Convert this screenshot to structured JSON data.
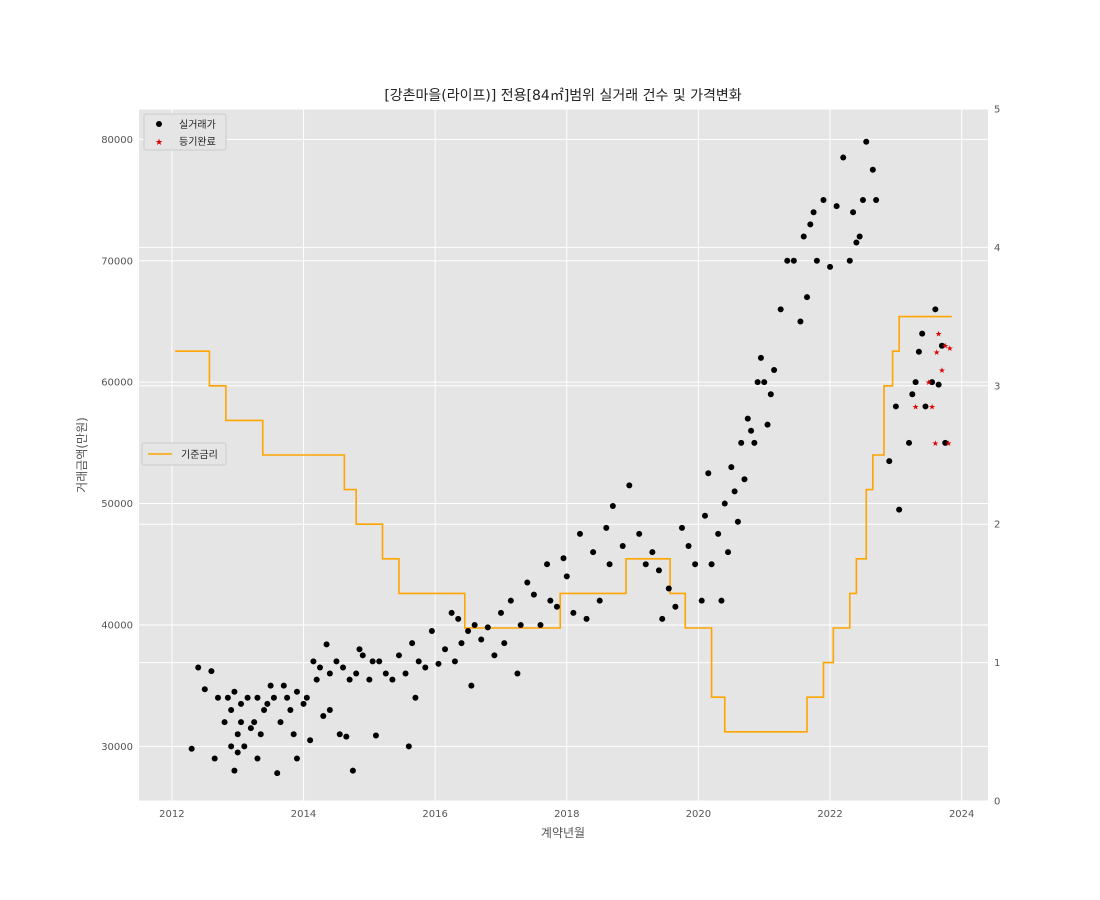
{
  "chart_data": {
    "type": "scatter",
    "title": "[강촌마을(라이프)] 전용[84㎡]범위 실거래 건수 및 가격변화",
    "xlabel": "계약년월",
    "ylabel": "거래금액(만원)",
    "xlim": [
      2011.5,
      2024.4
    ],
    "ylim": [
      25500,
      82500
    ],
    "y2lim": [
      0,
      5
    ],
    "x_ticks": [
      "2012",
      "2014",
      "2016",
      "2018",
      "2020",
      "2022",
      "2024"
    ],
    "y_ticks": [
      "30000",
      "40000",
      "50000",
      "60000",
      "70000",
      "80000"
    ],
    "y2_ticks": [
      "0",
      "1",
      "2",
      "3",
      "4",
      "5"
    ],
    "grid": true,
    "legend_scatter_position": "upper-left",
    "legend_line_position": "center-left",
    "series": [
      {
        "name": "실거래가",
        "kind": "scatter",
        "marker": "circle",
        "color": "#000000",
        "points": [
          [
            2012.3,
            29800
          ],
          [
            2012.4,
            36500
          ],
          [
            2012.5,
            34700
          ],
          [
            2012.6,
            36200
          ],
          [
            2012.65,
            29000
          ],
          [
            2012.7,
            34000
          ],
          [
            2012.8,
            32000
          ],
          [
            2012.85,
            34000
          ],
          [
            2012.9,
            33000
          ],
          [
            2012.9,
            30000
          ],
          [
            2012.95,
            28000
          ],
          [
            2012.95,
            34500
          ],
          [
            2013.0,
            29500
          ],
          [
            2013.0,
            31000
          ],
          [
            2013.05,
            33500
          ],
          [
            2013.05,
            32000
          ],
          [
            2013.1,
            30000
          ],
          [
            2013.15,
            34000
          ],
          [
            2013.2,
            31500
          ],
          [
            2013.25,
            32000
          ],
          [
            2013.3,
            34000
          ],
          [
            2013.3,
            29000
          ],
          [
            2013.35,
            31000
          ],
          [
            2013.4,
            33000
          ],
          [
            2013.45,
            33500
          ],
          [
            2013.5,
            35000
          ],
          [
            2013.55,
            34000
          ],
          [
            2013.6,
            27800
          ],
          [
            2013.65,
            32000
          ],
          [
            2013.7,
            35000
          ],
          [
            2013.75,
            34000
          ],
          [
            2013.8,
            33000
          ],
          [
            2013.85,
            31000
          ],
          [
            2013.9,
            34500
          ],
          [
            2013.9,
            29000
          ],
          [
            2014.0,
            33500
          ],
          [
            2014.05,
            34000
          ],
          [
            2014.1,
            30500
          ],
          [
            2014.15,
            37000
          ],
          [
            2014.2,
            35500
          ],
          [
            2014.25,
            36500
          ],
          [
            2014.3,
            32500
          ],
          [
            2014.35,
            38400
          ],
          [
            2014.4,
            33000
          ],
          [
            2014.4,
            36000
          ],
          [
            2014.5,
            37000
          ],
          [
            2014.55,
            31000
          ],
          [
            2014.6,
            36500
          ],
          [
            2014.65,
            30800
          ],
          [
            2014.7,
            35500
          ],
          [
            2014.75,
            28000
          ],
          [
            2014.8,
            36000
          ],
          [
            2014.85,
            38000
          ],
          [
            2014.9,
            37500
          ],
          [
            2015.0,
            35500
          ],
          [
            2015.05,
            37000
          ],
          [
            2015.1,
            30900
          ],
          [
            2015.15,
            37000
          ],
          [
            2015.25,
            36000
          ],
          [
            2015.35,
            35500
          ],
          [
            2015.45,
            37500
          ],
          [
            2015.55,
            36000
          ],
          [
            2015.6,
            30000
          ],
          [
            2015.65,
            38500
          ],
          [
            2015.7,
            34000
          ],
          [
            2015.75,
            37000
          ],
          [
            2015.85,
            36500
          ],
          [
            2015.95,
            39500
          ],
          [
            2016.05,
            36800
          ],
          [
            2016.15,
            38000
          ],
          [
            2016.25,
            41000
          ],
          [
            2016.3,
            37000
          ],
          [
            2016.35,
            40500
          ],
          [
            2016.4,
            38500
          ],
          [
            2016.5,
            39500
          ],
          [
            2016.55,
            35000
          ],
          [
            2016.6,
            40000
          ],
          [
            2016.7,
            38800
          ],
          [
            2016.8,
            39800
          ],
          [
            2016.9,
            37500
          ],
          [
            2017.0,
            41000
          ],
          [
            2017.05,
            38500
          ],
          [
            2017.15,
            42000
          ],
          [
            2017.25,
            36000
          ],
          [
            2017.3,
            40000
          ],
          [
            2017.4,
            43500
          ],
          [
            2017.5,
            42500
          ],
          [
            2017.6,
            40000
          ],
          [
            2017.7,
            45000
          ],
          [
            2017.75,
            42000
          ],
          [
            2017.85,
            41500
          ],
          [
            2017.95,
            45500
          ],
          [
            2018.0,
            44000
          ],
          [
            2018.1,
            41000
          ],
          [
            2018.2,
            47500
          ],
          [
            2018.3,
            40500
          ],
          [
            2018.4,
            46000
          ],
          [
            2018.5,
            42000
          ],
          [
            2018.6,
            48000
          ],
          [
            2018.65,
            45000
          ],
          [
            2018.7,
            49800
          ],
          [
            2018.85,
            46500
          ],
          [
            2018.95,
            51500
          ],
          [
            2019.1,
            47500
          ],
          [
            2019.2,
            45000
          ],
          [
            2019.3,
            46000
          ],
          [
            2019.4,
            44500
          ],
          [
            2019.45,
            40500
          ],
          [
            2019.55,
            43000
          ],
          [
            2019.65,
            41500
          ],
          [
            2019.75,
            48000
          ],
          [
            2019.85,
            46500
          ],
          [
            2019.95,
            45000
          ],
          [
            2020.05,
            42000
          ],
          [
            2020.1,
            49000
          ],
          [
            2020.15,
            52500
          ],
          [
            2020.2,
            45000
          ],
          [
            2020.3,
            47500
          ],
          [
            2020.35,
            42000
          ],
          [
            2020.4,
            50000
          ],
          [
            2020.45,
            46000
          ],
          [
            2020.5,
            53000
          ],
          [
            2020.55,
            51000
          ],
          [
            2020.6,
            48500
          ],
          [
            2020.65,
            55000
          ],
          [
            2020.7,
            52000
          ],
          [
            2020.75,
            57000
          ],
          [
            2020.8,
            56000
          ],
          [
            2020.85,
            55000
          ],
          [
            2020.9,
            60000
          ],
          [
            2020.95,
            62000
          ],
          [
            2021.0,
            60000
          ],
          [
            2021.05,
            56500
          ],
          [
            2021.1,
            59000
          ],
          [
            2021.15,
            61000
          ],
          [
            2021.25,
            66000
          ],
          [
            2021.35,
            70000
          ],
          [
            2021.45,
            70000
          ],
          [
            2021.55,
            65000
          ],
          [
            2021.6,
            72000
          ],
          [
            2021.65,
            67000
          ],
          [
            2021.7,
            73000
          ],
          [
            2021.75,
            74000
          ],
          [
            2021.8,
            70000
          ],
          [
            2021.9,
            75000
          ],
          [
            2022.0,
            69500
          ],
          [
            2022.1,
            74500
          ],
          [
            2022.2,
            78500
          ],
          [
            2022.3,
            70000
          ],
          [
            2022.35,
            74000
          ],
          [
            2022.4,
            71500
          ],
          [
            2022.45,
            72000
          ],
          [
            2022.5,
            75000
          ],
          [
            2022.55,
            79800
          ],
          [
            2022.65,
            77500
          ],
          [
            2022.7,
            75000
          ],
          [
            2022.9,
            53500
          ],
          [
            2023.0,
            58000
          ],
          [
            2023.05,
            49500
          ],
          [
            2023.2,
            55000
          ],
          [
            2023.25,
            59000
          ],
          [
            2023.3,
            60000
          ],
          [
            2023.35,
            62500
          ],
          [
            2023.4,
            64000
          ],
          [
            2023.45,
            58000
          ],
          [
            2023.55,
            60000
          ],
          [
            2023.6,
            66000
          ],
          [
            2023.65,
            59800
          ],
          [
            2023.7,
            63000
          ],
          [
            2023.75,
            55000
          ]
        ]
      },
      {
        "name": "등기완료",
        "kind": "scatter",
        "marker": "star",
        "color": "#e00000",
        "points": [
          [
            2023.3,
            58000
          ],
          [
            2023.5,
            60000
          ],
          [
            2023.55,
            58000
          ],
          [
            2023.6,
            55000
          ],
          [
            2023.62,
            62500
          ],
          [
            2023.65,
            64000
          ],
          [
            2023.7,
            61000
          ],
          [
            2023.75,
            63000
          ],
          [
            2023.8,
            55000
          ],
          [
            2023.82,
            62800
          ]
        ]
      },
      {
        "name": "기준금리",
        "kind": "line",
        "axis": "right",
        "step": true,
        "color": "#ffa500",
        "points": [
          [
            2012.05,
            3.25
          ],
          [
            2012.57,
            3.0
          ],
          [
            2012.82,
            2.75
          ],
          [
            2013.38,
            2.5
          ],
          [
            2014.62,
            2.25
          ],
          [
            2014.8,
            2.0
          ],
          [
            2015.2,
            1.75
          ],
          [
            2015.45,
            1.5
          ],
          [
            2016.45,
            1.25
          ],
          [
            2017.9,
            1.5
          ],
          [
            2018.9,
            1.75
          ],
          [
            2019.57,
            1.5
          ],
          [
            2019.8,
            1.25
          ],
          [
            2020.2,
            0.75
          ],
          [
            2020.4,
            0.5
          ],
          [
            2021.65,
            0.75
          ],
          [
            2021.9,
            1.0
          ],
          [
            2022.05,
            1.25
          ],
          [
            2022.3,
            1.5
          ],
          [
            2022.4,
            1.75
          ],
          [
            2022.55,
            2.25
          ],
          [
            2022.65,
            2.5
          ],
          [
            2022.82,
            3.0
          ],
          [
            2022.95,
            3.25
          ],
          [
            2023.05,
            3.5
          ],
          [
            2023.85,
            3.5
          ]
        ]
      }
    ]
  }
}
